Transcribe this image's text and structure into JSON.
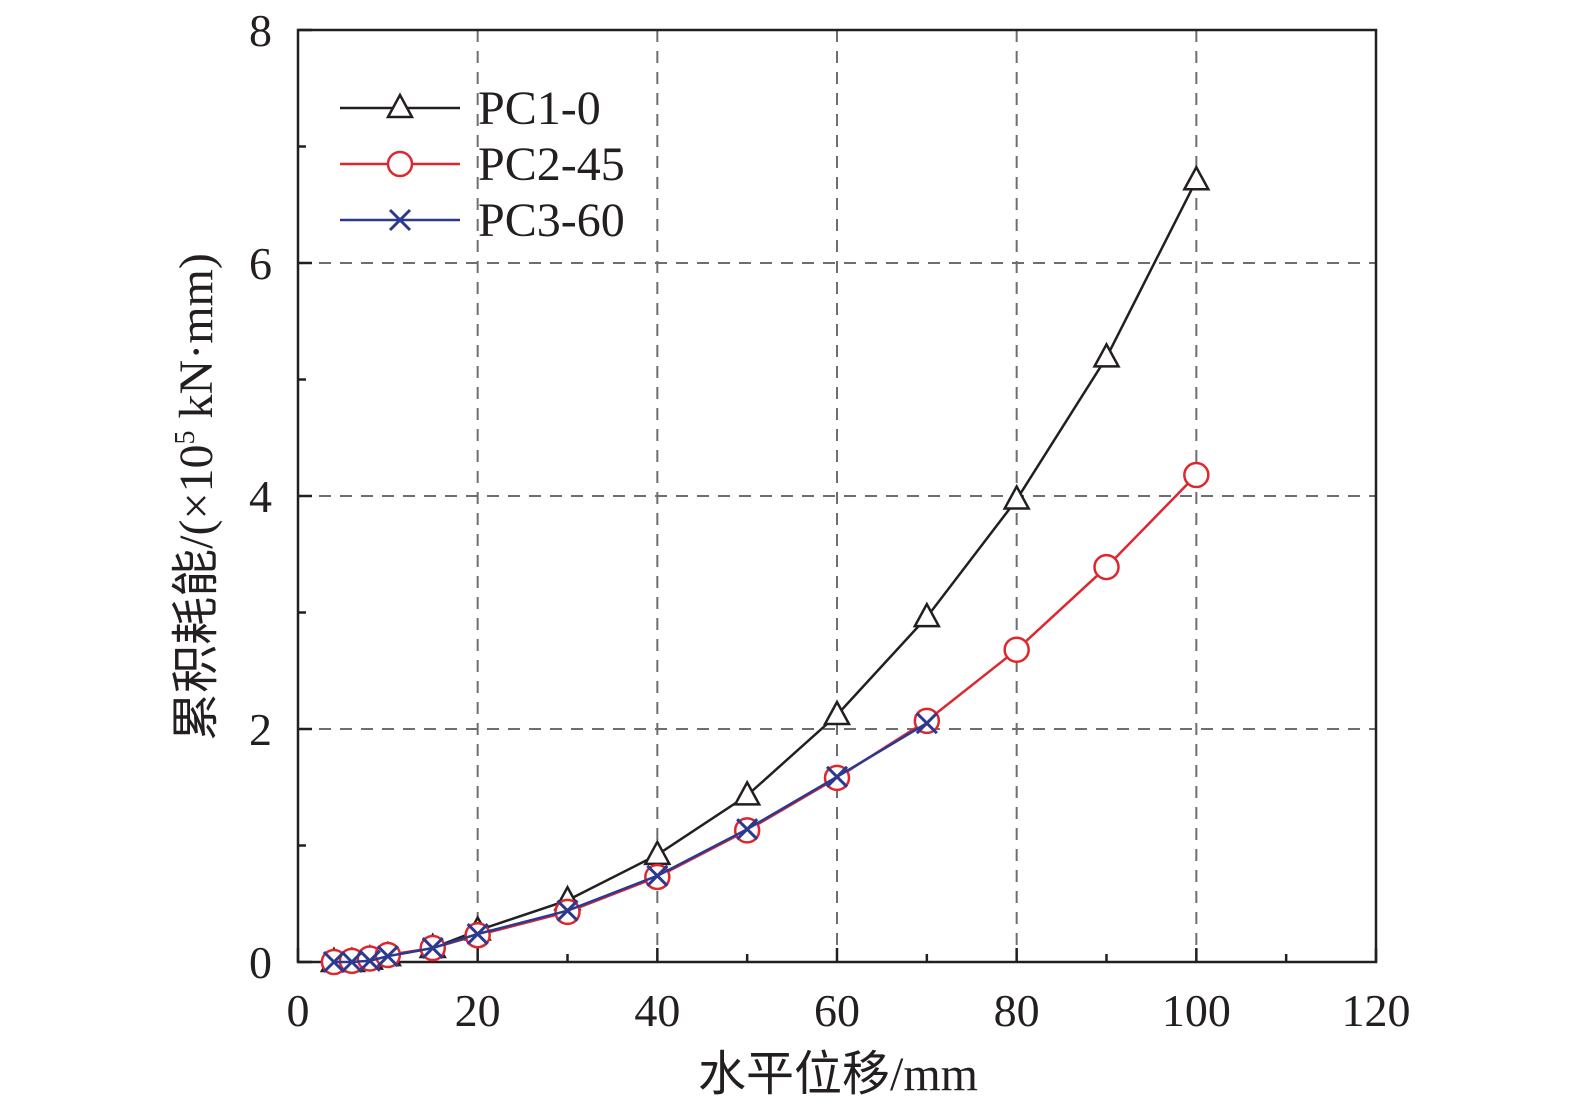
{
  "chart_data": {
    "type": "line",
    "title": "",
    "xlabel": "水平位移/mm",
    "ylabel_prefix": "累积耗能/(×10",
    "ylabel_exp": "5",
    "ylabel_suffix": " kN·mm)",
    "xlim": [
      0,
      120
    ],
    "ylim": [
      0,
      8
    ],
    "xticks": [
      0,
      20,
      40,
      60,
      80,
      100,
      120
    ],
    "yticks": [
      0,
      2,
      4,
      6,
      8
    ],
    "xtick_labels": [
      "0",
      "20",
      "40",
      "60",
      "80",
      "100",
      "120"
    ],
    "ytick_labels": [
      "0",
      "2",
      "4",
      "6",
      "8"
    ],
    "grid": true,
    "legend_position": "top-left",
    "series": [
      {
        "name": "PC1-0",
        "color": "#231f20",
        "marker": "triangle",
        "x": [
          4,
          6,
          8,
          10,
          15,
          20,
          30,
          40,
          50,
          60,
          70,
          80,
          90,
          100
        ],
        "y": [
          0.0,
          0.0,
          0.02,
          0.05,
          0.12,
          0.27,
          0.53,
          0.92,
          1.43,
          2.12,
          2.96,
          3.97,
          5.19,
          6.71
        ]
      },
      {
        "name": "PC2-45",
        "color": "#e0262d",
        "marker": "circle",
        "x": [
          4,
          6,
          8,
          10,
          15,
          20,
          30,
          40,
          50,
          60,
          70,
          80,
          90,
          100
        ],
        "y": [
          0.0,
          0.01,
          0.03,
          0.06,
          0.12,
          0.23,
          0.43,
          0.73,
          1.13,
          1.58,
          2.07,
          2.68,
          3.39,
          4.18
        ]
      },
      {
        "name": "PC3-60",
        "color": "#2b3990",
        "marker": "x",
        "x": [
          4,
          6,
          8,
          10,
          15,
          20,
          30,
          40,
          50,
          60,
          70
        ],
        "y": [
          0.0,
          0.0,
          0.01,
          0.05,
          0.12,
          0.24,
          0.44,
          0.74,
          1.14,
          1.59,
          2.05
        ]
      }
    ]
  }
}
